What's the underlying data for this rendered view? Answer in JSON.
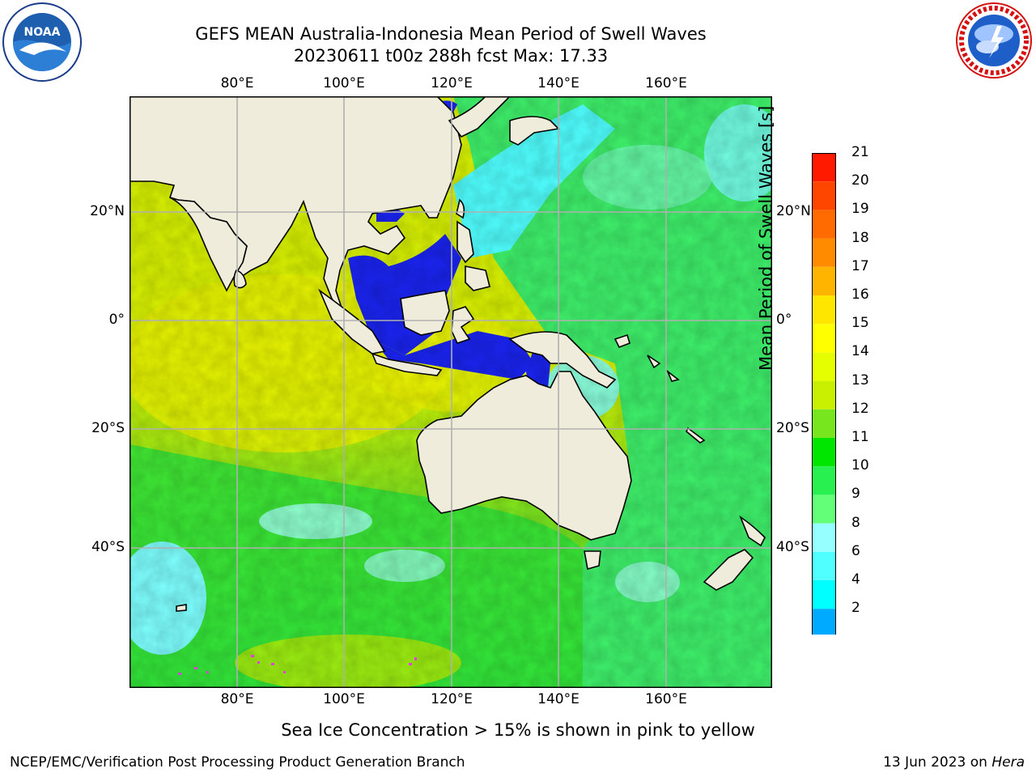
{
  "header": {
    "title_line1": "GEFS MEAN Australia-Indonesia Mean Period of Swell Waves",
    "title_line2": "20230611 t00z 288h fcst   Max: 17.33"
  },
  "map": {
    "lon_labels": [
      "80°E",
      "100°E",
      "120°E",
      "140°E",
      "160°E"
    ],
    "lat_labels": [
      "20°N",
      "0°",
      "20°S",
      "40°S"
    ],
    "regions": [
      "Indian Ocean",
      "Indonesia",
      "Australia",
      "New Zealand",
      "Western Pacific"
    ],
    "land_color": "#efecdc",
    "grid_color": "#b0b0b0"
  },
  "colorbar": {
    "label": "Mean Period of Swell Waves [s]",
    "ticks": [
      "21",
      "20",
      "19",
      "18",
      "17",
      "16",
      "15",
      "14",
      "13",
      "12",
      "11",
      "10",
      "9",
      "8",
      "6",
      "4",
      "2"
    ],
    "colors": [
      "#ff1a00",
      "#ff4600",
      "#ff6b00",
      "#ff8c00",
      "#ffb400",
      "#ffe600",
      "#ffff00",
      "#e6ff00",
      "#c8f000",
      "#78e61e",
      "#00e600",
      "#28f050",
      "#64ff78",
      "#96ffff",
      "#50ffff",
      "#00ffff",
      "#00aaff",
      "#0050ff"
    ]
  },
  "footer": {
    "note": "Sea Ice Concentration > 15% is shown in pink to yellow",
    "credit": "NCEP/EMC/Verification Post Processing Product Generation Branch",
    "date_text": "13 Jun 2023 on ",
    "host": "Hera"
  },
  "logos": {
    "left": "noaa-logo",
    "right": "nws-logo"
  }
}
